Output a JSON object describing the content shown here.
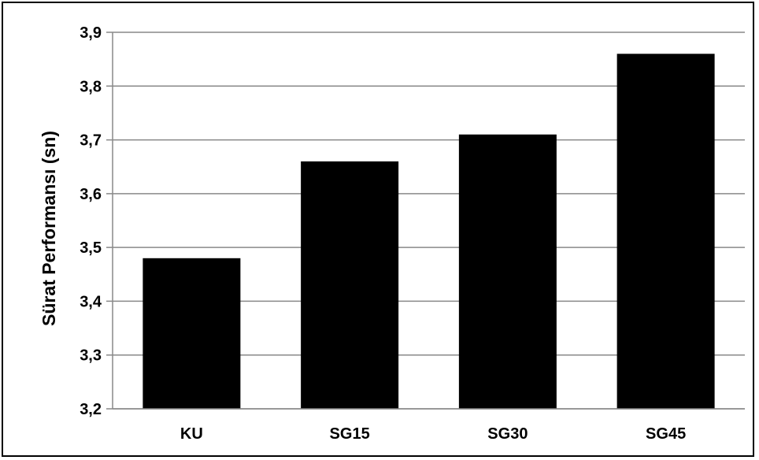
{
  "chart_data": {
    "type": "bar",
    "title": "",
    "xlabel": "",
    "ylabel": "Sürat Performansı (sn)",
    "categories": [
      "KU",
      "SG15",
      "SG30",
      "SG45"
    ],
    "values": [
      3.48,
      3.66,
      3.71,
      3.86
    ],
    "ylim": [
      3.2,
      3.9
    ],
    "yticks": [
      "3,2",
      "3,3",
      "3,4",
      "3,5",
      "3,6",
      "3,7",
      "3,8",
      "3,9"
    ],
    "grid": true,
    "legend": "none",
    "bar_color": "#000000",
    "grid_color": "#898989"
  }
}
